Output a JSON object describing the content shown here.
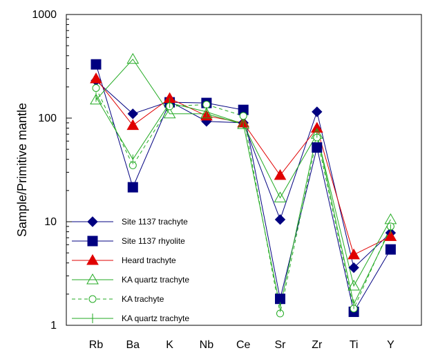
{
  "chart_data": {
    "type": "line",
    "y_scale": "log",
    "categories": [
      "Rb",
      "Ba",
      "K",
      "Nb",
      "Ce",
      "Sr",
      "Zr",
      "Ti",
      "Y"
    ],
    "ylabel": "Sample/Primitive mantle",
    "ylim": [
      1,
      1000
    ],
    "y_ticks": [
      "1",
      "10",
      "100",
      "1000"
    ],
    "grid": false,
    "legend_position": "bottom-left",
    "series": [
      {
        "name": "Site 1137 trachyte",
        "color": "#000080",
        "marker": "filled-diamond",
        "line": "solid",
        "values": [
          230,
          110,
          145,
          93,
          90,
          10.5,
          115,
          3.6,
          7.8
        ]
      },
      {
        "name": "Site 1137 rhyolite",
        "color": "#000080",
        "marker": "filled-square",
        "line": "solid",
        "values": [
          330,
          21.5,
          142,
          140,
          120,
          1.8,
          52,
          1.35,
          5.4
        ]
      },
      {
        "name": "Heard trachyte",
        "color": "#e00000",
        "marker": "filled-triangle",
        "line": "solid",
        "values": [
          240,
          85,
          155,
          105,
          90,
          28,
          80,
          4.8,
          7.2
        ]
      },
      {
        "name": "KA quartz trachyte",
        "color": "#22aa22",
        "marker": "open-triangle",
        "line": "solid",
        "values": [
          150,
          370,
          110,
          110,
          87,
          17,
          70,
          2.4,
          10.5
        ]
      },
      {
        "name": "KA trachyte",
        "color": "#22aa22",
        "marker": "open-circle",
        "line": "dashed",
        "values": [
          195,
          35,
          130,
          135,
          105,
          1.3,
          65,
          1.45,
          9.0
        ]
      },
      {
        "name": "KA quartz trachyte",
        "color": "#22aa22",
        "marker": "plus",
        "line": "solid",
        "values": [
          160,
          40,
          140,
          115,
          88,
          1.5,
          72,
          1.6,
          8.5
        ]
      }
    ]
  }
}
